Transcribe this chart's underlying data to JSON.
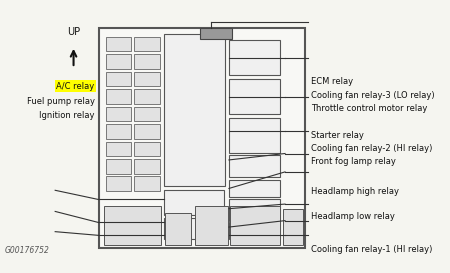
{
  "bg_color": "#f5f5f0",
  "box_fill": "#f8f8f5",
  "edge_color": "#333333",
  "fuse_fill": "#e8e8e8",
  "relay_fill": "#eeeeee",
  "highlight_fill": "#ffff00",
  "watermark": "G00176752",
  "labels_right": [
    {
      "text": "Cooling fan relay-1 (HI relay)",
      "ya": 0.95
    },
    {
      "text": "Headlamp low relay",
      "ya": 0.82
    },
    {
      "text": "Headlamp high relay",
      "ya": 0.72
    },
    {
      "text": "Front fog lamp relay",
      "ya": 0.6
    },
    {
      "text": "Cooling fan relay-2 (HI relay)",
      "ya": 0.548
    },
    {
      "text": "Starter relay",
      "ya": 0.495
    },
    {
      "text": "Throttle control motor relay",
      "ya": 0.39
    },
    {
      "text": "Cooling fan relay-3 (LO relay)",
      "ya": 0.338
    },
    {
      "text": "ECM relay",
      "ya": 0.282
    }
  ],
  "labels_left": [
    {
      "text": "Ignition relay",
      "ya": 0.415,
      "highlight": false
    },
    {
      "text": "Fuel pump relay",
      "ya": 0.36,
      "highlight": false
    },
    {
      "text": "A/C relay",
      "ya": 0.3,
      "highlight": true
    }
  ]
}
